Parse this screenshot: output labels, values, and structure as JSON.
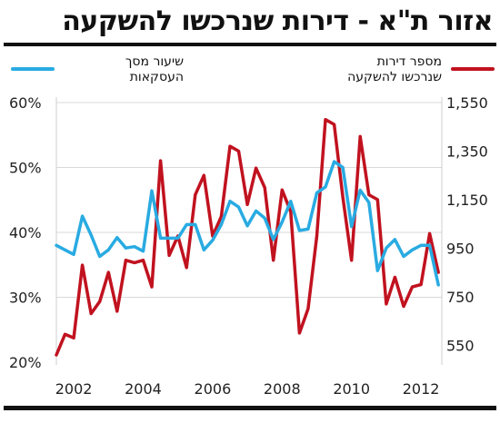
{
  "title": "אזור ת\"א - דירות שנרכשו להשקעה",
  "chart_data": {
    "type": "line",
    "x": [
      2001.5,
      2001.75,
      2002,
      2002.25,
      2002.5,
      2002.75,
      2003,
      2003.25,
      2003.5,
      2003.75,
      2004,
      2004.25,
      2004.5,
      2004.75,
      2005,
      2005.25,
      2005.5,
      2005.75,
      2006,
      2006.25,
      2006.5,
      2006.75,
      2007,
      2007.25,
      2007.5,
      2007.75,
      2008,
      2008.25,
      2008.5,
      2008.75,
      2009,
      2009.25,
      2009.5,
      2009.75,
      2010,
      2010.25,
      2010.5,
      2010.75,
      2011,
      2011.25,
      2011.5,
      2011.75,
      2012,
      2012.25,
      2012.5
    ],
    "series": [
      {
        "name": "שיעור מסך\nהעסקאות",
        "color": "#29abe2",
        "axis": "left",
        "values": [
          38.0,
          37.3,
          36.6,
          42.5,
          39.6,
          36.3,
          37.3,
          39.2,
          37.6,
          37.8,
          37.1,
          46.4,
          39.1,
          39.1,
          39.1,
          41.2,
          41.2,
          37.3,
          38.8,
          41.2,
          44.8,
          43.9,
          41.0,
          43.3,
          42.2,
          38.9,
          41.6,
          44.8,
          40.3,
          40.5,
          46.1,
          47.0,
          50.9,
          50.0,
          40.9,
          46.5,
          44.6,
          34.1,
          37.6,
          38.9,
          36.3,
          37.3,
          38.0,
          38.0,
          31.9
        ]
      },
      {
        "name": "מספר דירות\nשנרכשו להשקעה",
        "color": "#c1121f",
        "axis": "right",
        "values": [
          510,
          595,
          580,
          880,
          680,
          730,
          850,
          690,
          900,
          890,
          900,
          790,
          1310,
          920,
          1000,
          870,
          1170,
          1250,
          1000,
          1080,
          1370,
          1350,
          1130,
          1280,
          1200,
          900,
          1190,
          1100,
          600,
          700,
          1000,
          1480,
          1460,
          1160,
          900,
          1410,
          1170,
          1150,
          720,
          830,
          710,
          790,
          800,
          1010,
          850
        ]
      }
    ],
    "ylim_left": [
      20,
      60
    ],
    "yticks_left": [
      "20%",
      "30%",
      "40%",
      "50%",
      "60%"
    ],
    "ylim_right": [
      480,
      1550
    ],
    "yticks_right": [
      "550",
      "750",
      "950",
      "1,150",
      "1,350",
      "1,550"
    ],
    "xticks": [
      "2002",
      "2004",
      "2006",
      "2008",
      "2010",
      "2012"
    ],
    "xlim": [
      2001.5,
      2012.6
    ],
    "grid": "horizontal",
    "legend": "top"
  }
}
